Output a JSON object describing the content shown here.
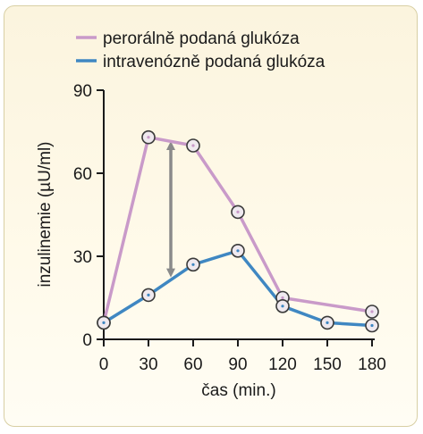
{
  "chart_data": {
    "type": "line",
    "xlabel": "čas (min.)",
    "ylabel": "inzulinemie (µU/ml)",
    "x": [
      0,
      30,
      60,
      90,
      120,
      150,
      180
    ],
    "xticks": [
      "0",
      "30",
      "60",
      "90",
      "120",
      "150",
      "180"
    ],
    "yticks": [
      "0",
      "30",
      "60",
      "90"
    ],
    "xlim": [
      0,
      180
    ],
    "ylim": [
      0,
      90
    ],
    "grid": false,
    "legend_position": "top",
    "series": [
      {
        "name": "perorálně podaná glukóza",
        "color": "#c99ac9",
        "x": [
          0,
          30,
          60,
          90,
          120,
          180
        ],
        "values": [
          6,
          73,
          70,
          46,
          15,
          10
        ]
      },
      {
        "name": "intravenózně podaná glukóza",
        "color": "#3f87c2",
        "x": [
          0,
          30,
          60,
          90,
          120,
          150,
          180
        ],
        "values": [
          6,
          16,
          27,
          32,
          12,
          6,
          5
        ]
      }
    ],
    "annotations": [
      {
        "type": "double-arrow",
        "x": 45,
        "from": 70,
        "to": 24,
        "color": "#8a8a8a"
      }
    ]
  }
}
